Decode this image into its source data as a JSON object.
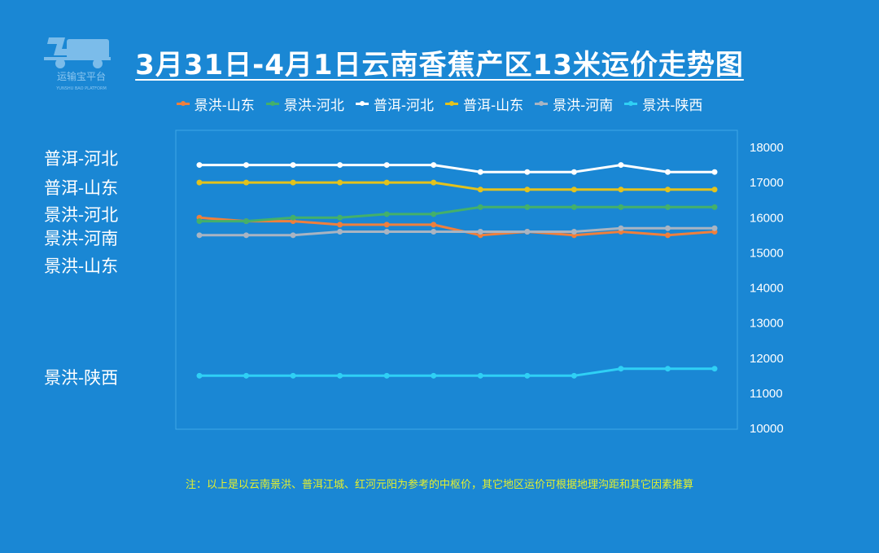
{
  "logo": {
    "name": "运输宝平台",
    "subtitle": "YUNSHU BAO PLATFORM"
  },
  "title": "3月31日-4月1日云南香蕉产区13米运价走势图",
  "note": "注：以上是以云南景洪、普洱江城、红河元阳为参考的中枢价，其它地区运价可根据地理沟距和其它因素推算",
  "side_labels": [
    "普洱-河北",
    "普洱-山东",
    "景洪-河北",
    "景洪-河南",
    "景洪-山东",
    "景洪-陕西"
  ],
  "colors": {
    "background": "#1a87d4",
    "plot_border": "#3fa7e6",
    "note": "#e6f02c"
  },
  "chart_data": {
    "type": "line",
    "title": "3月31日-4月1日云南香蕉产区13米运价走势图",
    "xlabel": "",
    "ylabel": "",
    "ylim": [
      10000,
      18000
    ],
    "yticks": [
      18000,
      17000,
      16000,
      15000,
      14000,
      13000,
      12000,
      11000,
      10000
    ],
    "y_axis_side": "right",
    "grid": false,
    "legend_position": "top",
    "x": [
      1,
      2,
      3,
      4,
      5,
      6,
      7,
      8,
      9,
      10,
      11,
      12
    ],
    "series": [
      {
        "name": "景洪-山东",
        "color": "#ef7f3c",
        "values": [
          16000,
          15900,
          15900,
          15800,
          15800,
          15800,
          15500,
          15600,
          15500,
          15600,
          15500,
          15600
        ]
      },
      {
        "name": "景洪-河北",
        "color": "#44b06a",
        "values": [
          15900,
          15900,
          16000,
          16000,
          16100,
          16100,
          16300,
          16300,
          16300,
          16300,
          16300,
          16300
        ]
      },
      {
        "name": "普洱-河北",
        "color": "#ffffff",
        "values": [
          17500,
          17500,
          17500,
          17500,
          17500,
          17500,
          17300,
          17300,
          17300,
          17500,
          17300,
          17300
        ]
      },
      {
        "name": "普洱-山东",
        "color": "#e3c21c",
        "values": [
          17000,
          17000,
          17000,
          17000,
          17000,
          17000,
          16800,
          16800,
          16800,
          16800,
          16800,
          16800
        ]
      },
      {
        "name": "景洪-河南",
        "color": "#a9b4c2",
        "values": [
          15500,
          15500,
          15500,
          15600,
          15600,
          15600,
          15600,
          15600,
          15600,
          15700,
          15700,
          15700
        ]
      },
      {
        "name": "景洪-陕西",
        "color": "#2fd0f5",
        "values": [
          11500,
          11500,
          11500,
          11500,
          11500,
          11500,
          11500,
          11500,
          11500,
          11700,
          11700,
          11700
        ]
      }
    ]
  }
}
